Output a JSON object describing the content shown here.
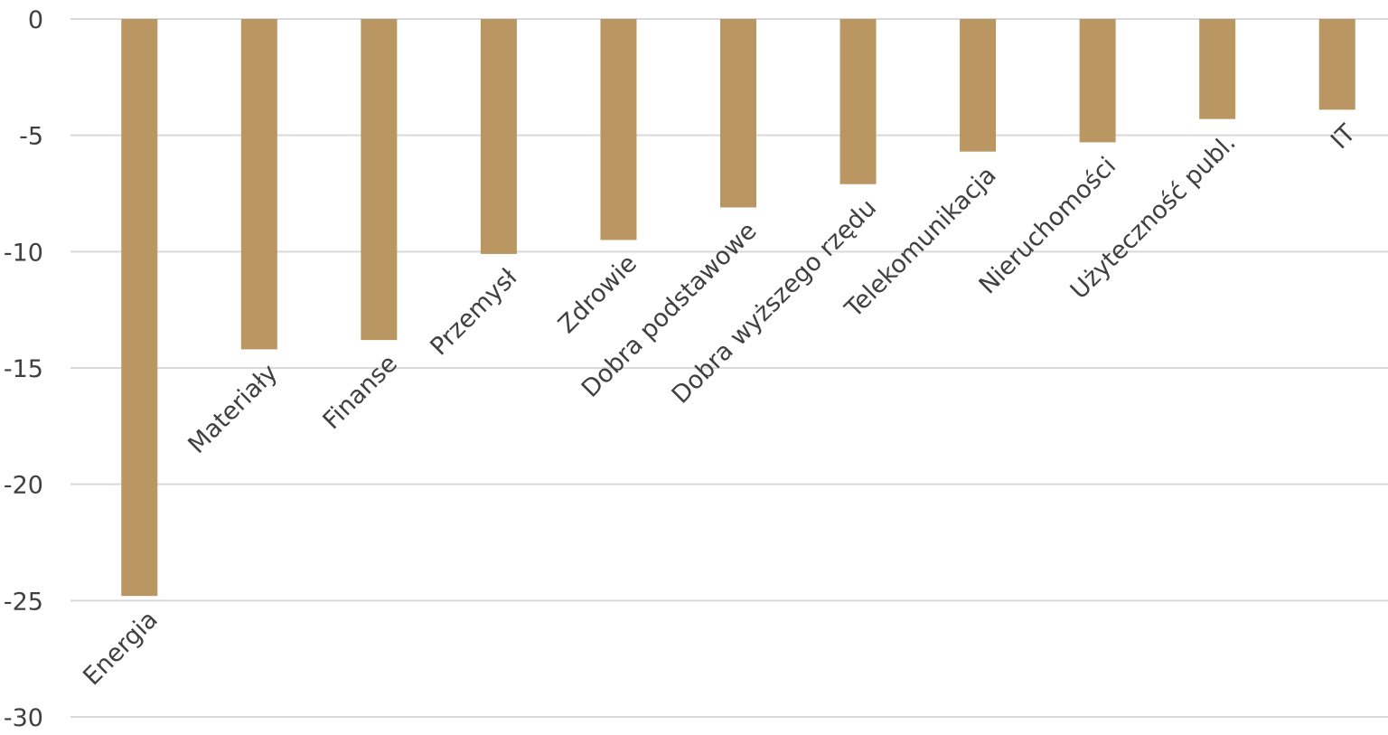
{
  "chart_data": {
    "type": "bar",
    "title": "",
    "xlabel": "",
    "ylabel": "",
    "ylim": [
      -30,
      0
    ],
    "yticks": [
      0,
      -5,
      -10,
      -15,
      -20,
      -25,
      -30
    ],
    "ytick_labels": [
      "0",
      "-5",
      "-10",
      "-15",
      "-20",
      "-25",
      "-30"
    ],
    "grid": true,
    "legend": "none",
    "bar_color": "#BA9662",
    "categories": [
      "Energia",
      "Materiały",
      "Finanse",
      "Przemysł",
      "Zdrowie",
      "Dobra podstawowe",
      "Dobra wyższego rzędu",
      "Telekomunikacja",
      "Nieruchomości",
      "Użyteczność publ.",
      "IT"
    ],
    "values": [
      -24.8,
      -14.2,
      -13.8,
      -10.1,
      -9.5,
      -8.1,
      -7.1,
      -5.7,
      -5.3,
      -4.3,
      -3.9
    ]
  }
}
